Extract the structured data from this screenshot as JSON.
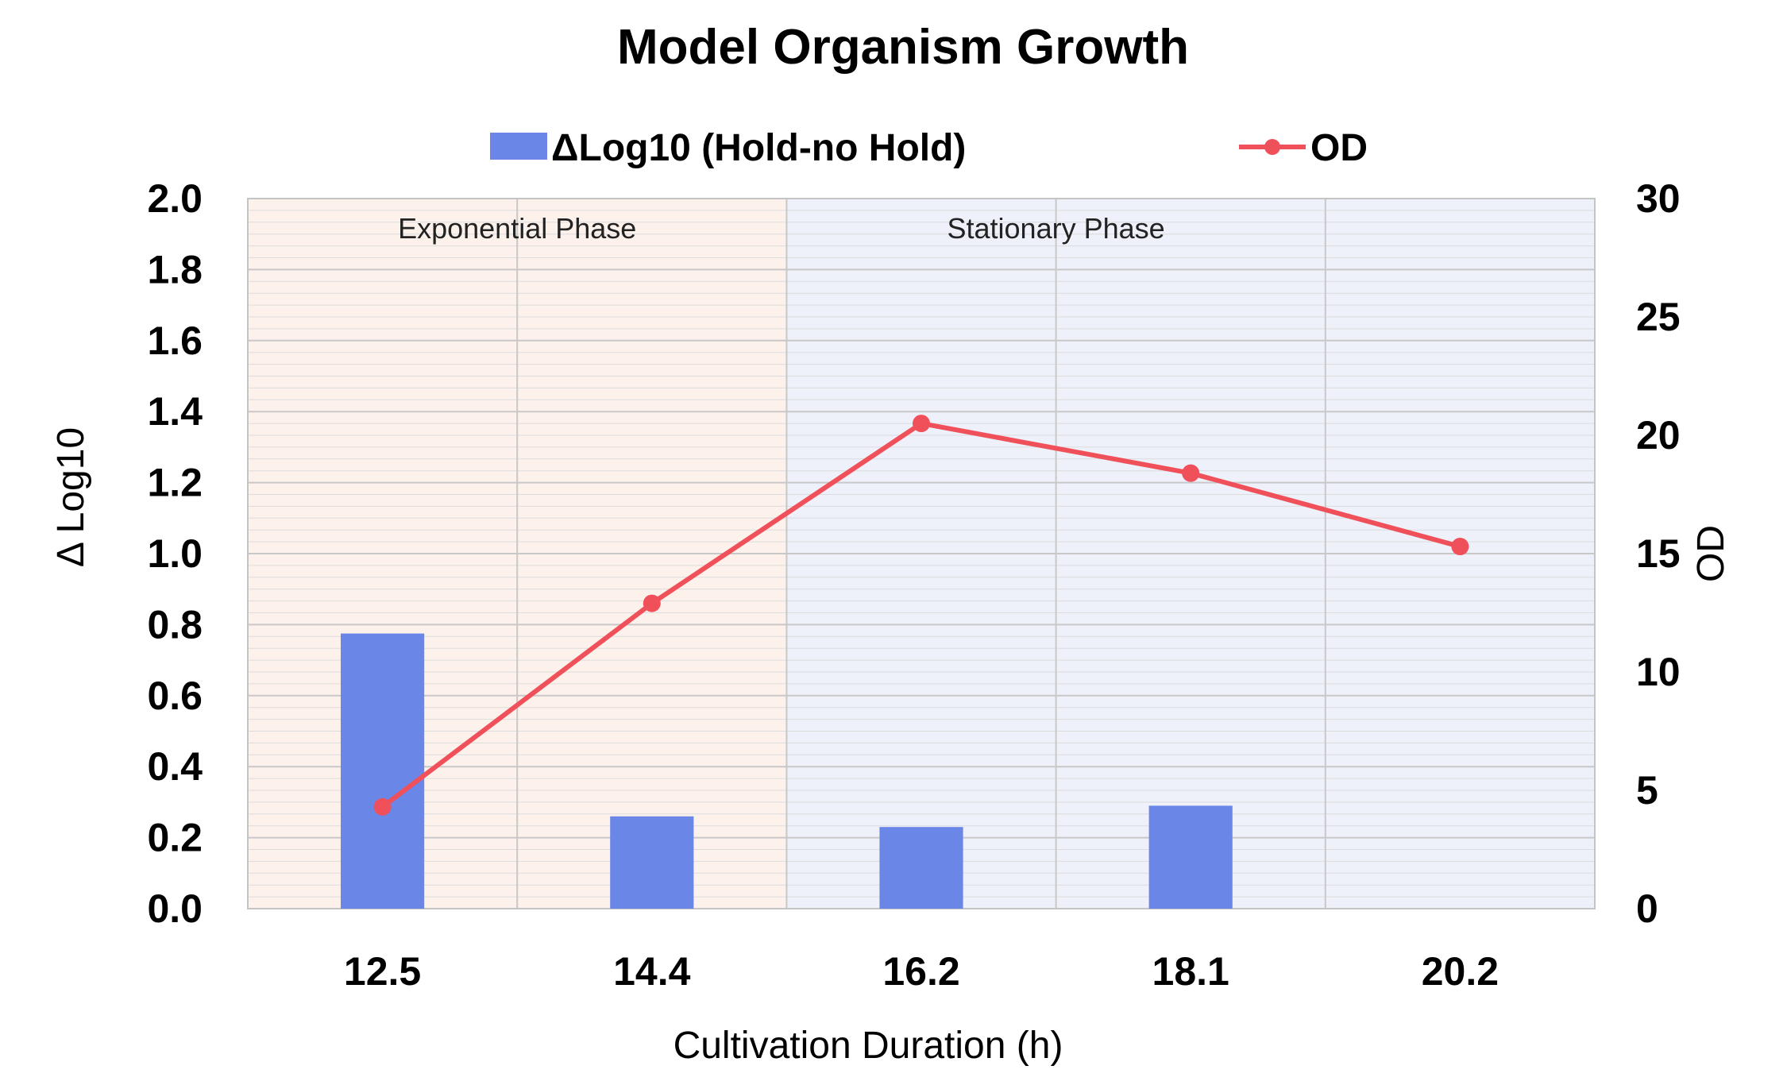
{
  "chart_data": {
    "type": "bar+line",
    "title": "Model Organism Growth",
    "xlabel": "Cultivation Duration (h)",
    "ylabel_left": "Δ Log10",
    "ylabel_right": "OD",
    "categories": [
      "12.5",
      "14.4",
      "16.2",
      "18.1",
      "20.2"
    ],
    "ylim_left": [
      0,
      2.0
    ],
    "ylim_right": [
      0,
      30
    ],
    "yticks_left": [
      "0.0",
      "0.2",
      "0.4",
      "0.6",
      "0.8",
      "1.0",
      "1.2",
      "1.4",
      "1.6",
      "1.8",
      "2.0"
    ],
    "yticks_right": [
      "0",
      "5",
      "10",
      "15",
      "20",
      "25",
      "30"
    ],
    "series": [
      {
        "name": "ΔLog10 (Hold-no Hold)",
        "type": "bar",
        "axis": "left",
        "color": "#6a86e6",
        "values": [
          0.775,
          0.26,
          0.23,
          0.29,
          null
        ]
      },
      {
        "name": "OD",
        "type": "line",
        "axis": "right",
        "color": "#f0505a",
        "values": [
          4.3,
          12.9,
          20.5,
          18.4,
          15.3
        ]
      }
    ],
    "regions": [
      {
        "label": "Exponential Phase",
        "color": "#fdf1ec"
      },
      {
        "label": "Stationary Phase",
        "color": "#eef0fa"
      }
    ],
    "legend_position": "top",
    "grid": true
  }
}
